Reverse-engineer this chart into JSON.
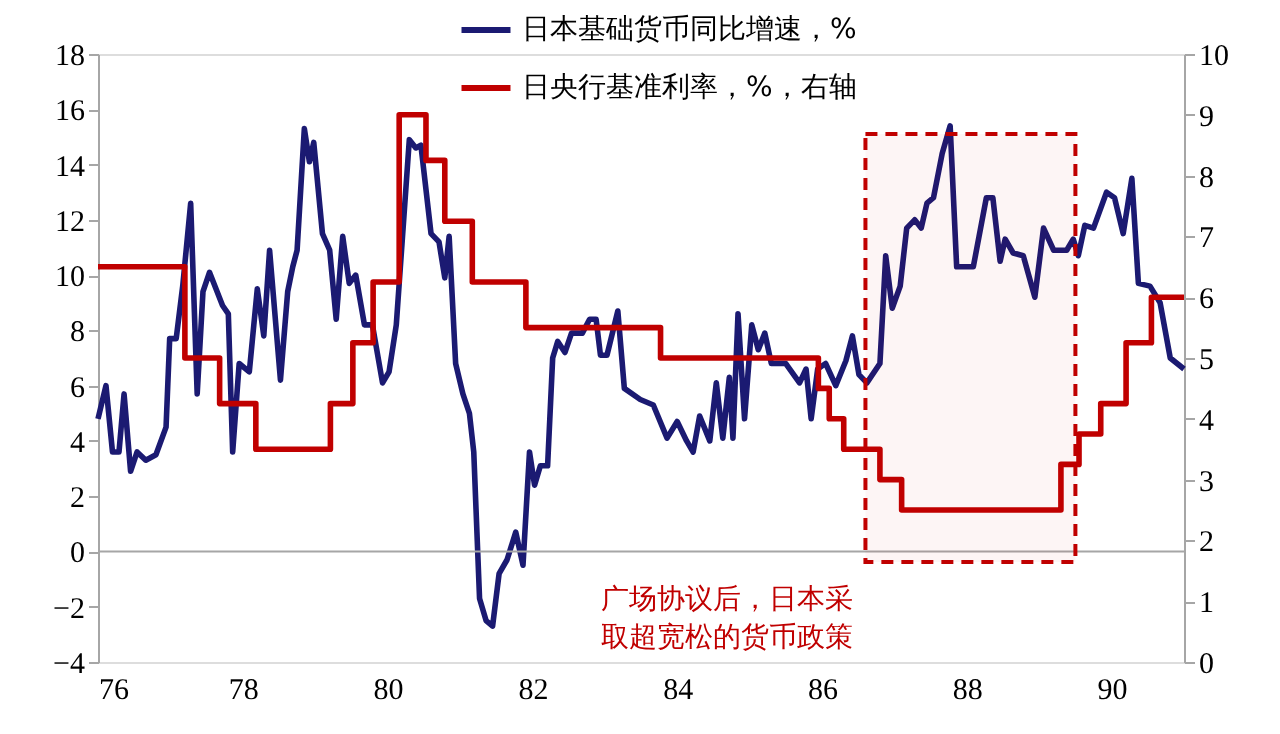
{
  "chart_data": {
    "type": "line",
    "xlim": [
      76,
      91
    ],
    "xticks": [
      76,
      78,
      80,
      82,
      84,
      86,
      88,
      90
    ],
    "ylim": [
      -4,
      18
    ],
    "yticks": [
      -4,
      -2,
      0,
      2,
      4,
      6,
      8,
      10,
      12,
      14,
      16,
      18
    ],
    "y2lim": [
      0,
      10
    ],
    "y2ticks": [
      0,
      1,
      2,
      3,
      4,
      5,
      6,
      7,
      8,
      9,
      10
    ],
    "grid": false,
    "legend": "top",
    "line_style": "solid",
    "marker": "none",
    "series": [
      {
        "name": "日本基础货币同比增速，%",
        "color": "#1b1a72",
        "x": [
          76.0,
          76.11,
          76.2,
          76.29,
          76.36,
          76.45,
          76.54,
          76.66,
          76.8,
          76.94,
          76.99,
          77.08,
          77.17,
          77.28,
          77.37,
          77.45,
          77.54,
          77.72,
          77.8,
          77.86,
          77.95,
          78.09,
          78.2,
          78.29,
          78.37,
          78.52,
          78.62,
          78.69,
          78.75,
          78.85,
          78.92,
          78.98,
          79.1,
          79.2,
          79.29,
          79.38,
          79.47,
          79.56,
          79.68,
          79.79,
          79.93,
          80.02,
          80.12,
          80.3,
          80.39,
          80.46,
          80.6,
          80.71,
          80.79,
          80.85,
          80.94,
          81.04,
          81.13,
          81.19,
          81.27,
          81.36,
          81.45,
          81.54,
          81.65,
          81.77,
          81.87,
          81.96,
          82.03,
          82.11,
          82.21,
          82.28,
          82.35,
          82.45,
          82.54,
          82.69,
          82.79,
          82.88,
          82.94,
          83.03,
          83.18,
          83.27,
          83.49,
          83.67,
          83.86,
          84.0,
          84.13,
          84.22,
          84.31,
          84.45,
          84.54,
          84.63,
          84.72,
          84.77,
          84.84,
          84.93,
          85.03,
          85.12,
          85.21,
          85.3,
          85.5,
          85.69,
          85.78,
          85.85,
          85.94,
          86.05,
          86.19,
          86.33,
          86.42,
          86.51,
          86.62,
          86.8,
          86.88,
          86.97,
          87.08,
          87.17,
          87.28,
          87.37,
          87.45,
          87.54,
          87.66,
          87.77,
          87.86,
          88.09,
          88.27,
          88.36,
          88.46,
          88.53,
          88.64,
          88.78,
          88.94,
          89.06,
          89.2,
          89.38,
          89.47,
          89.54,
          89.63,
          89.75,
          89.93,
          90.04,
          90.16,
          90.28,
          90.37,
          90.53,
          90.67,
          90.81,
          91.0
        ],
        "values": [
          4.8,
          6.0,
          3.6,
          3.6,
          5.7,
          2.9,
          3.6,
          3.3,
          3.5,
          4.5,
          7.7,
          7.7,
          9.6,
          12.6,
          5.7,
          9.4,
          10.1,
          8.9,
          8.6,
          3.6,
          6.8,
          6.5,
          9.5,
          7.8,
          10.9,
          6.2,
          9.4,
          10.3,
          10.9,
          15.3,
          14.1,
          14.8,
          11.5,
          10.9,
          8.4,
          11.4,
          9.7,
          10.0,
          8.2,
          8.2,
          6.1,
          6.5,
          8.2,
          14.9,
          14.6,
          14.7,
          11.5,
          11.2,
          9.9,
          11.4,
          6.8,
          5.7,
          5.0,
          3.6,
          -1.7,
          -2.5,
          -2.7,
          -0.8,
          -0.3,
          0.7,
          -0.5,
          3.6,
          2.4,
          3.1,
          3.1,
          7.0,
          7.6,
          7.2,
          7.9,
          7.9,
          8.4,
          8.4,
          7.1,
          7.1,
          8.7,
          5.9,
          5.5,
          5.3,
          4.1,
          4.7,
          4.0,
          3.6,
          4.9,
          4.0,
          6.1,
          4.1,
          6.3,
          4.1,
          8.6,
          4.8,
          8.2,
          7.3,
          7.9,
          6.8,
          6.8,
          6.1,
          6.6,
          4.8,
          6.6,
          6.8,
          6.0,
          6.9,
          7.8,
          6.4,
          6.1,
          6.8,
          10.7,
          8.8,
          9.6,
          11.7,
          12.0,
          11.7,
          12.6,
          12.8,
          14.4,
          15.4,
          10.3,
          10.3,
          12.8,
          12.8,
          10.5,
          11.3,
          10.8,
          10.7,
          9.2,
          11.7,
          10.9,
          10.9,
          11.3,
          10.7,
          11.8,
          11.7,
          13.0,
          12.8,
          11.5,
          13.5,
          9.7,
          9.6,
          9.0,
          7.0,
          6.6
        ]
      },
      {
        "name": "日央行基准利率，%，右轴",
        "color": "#c00000",
        "type": "step",
        "axis": "y2",
        "x": [
          76,
          77.2,
          77.68,
          78.18,
          79.21,
          79.52,
          79.8,
          80.16,
          80.53,
          80.79,
          81.17,
          81.91,
          83.77,
          85.95,
          86.1,
          86.3,
          86.8,
          87.1,
          89.3,
          89.55,
          89.85,
          90.2,
          90.55,
          91
        ],
        "values": [
          6.5,
          5.0,
          4.25,
          3.5,
          4.25,
          5.25,
          6.25,
          9.0,
          8.25,
          7.25,
          6.25,
          5.5,
          5.0,
          4.5,
          4.0,
          3.5,
          3.0,
          2.5,
          3.25,
          3.75,
          4.25,
          5.25,
          6.0,
          6.0
        ]
      }
    ],
    "ref_lines": [
      {
        "axis": "y",
        "value": 0,
        "color": "#a6a6a6"
      }
    ],
    "bands": [
      {
        "axis": "x",
        "from": 86.6,
        "to": 89.5,
        "color": "#c00000",
        "label": "广场协议后，日本采取超宽松的货币政策"
      }
    ]
  }
}
